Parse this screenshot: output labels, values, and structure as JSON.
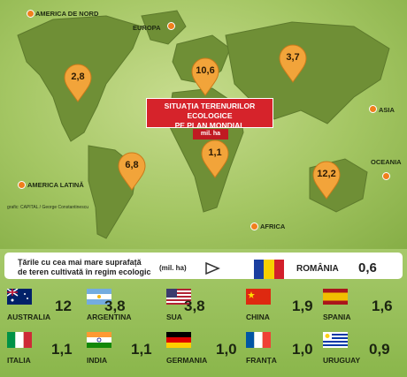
{
  "map": {
    "regions": {
      "north_america": "AMERICA DE NORD",
      "europe": "EUROPA",
      "asia": "ASIA",
      "oceania": "OCEANIA",
      "africa": "AFRICA",
      "latin_america": "AMERICA LATINĂ"
    },
    "values": {
      "north_america": "2,8",
      "europe": "10,6",
      "asia": "3,7",
      "africa": "1,1",
      "latin_america": "6,8",
      "oceania": "12,2"
    },
    "title_line1": "SITUAȚIA TERENURILOR ECOLOGICE",
    "title_line2": "PE PLAN MONDIAL",
    "unit": "mil. ha",
    "credit": "grafic: CAPITAL / George Constantinescu"
  },
  "panel": {
    "title_line1": "Țările cu cea mai mare suprafață",
    "title_line2": "de teren cultivată în regim ecologic",
    "unit": "(mil. ha)",
    "romania": {
      "name": "ROMÂNIA",
      "value": "0,6"
    },
    "countries": [
      {
        "name": "AUSTRALIA",
        "value": "12",
        "flag": "australia-flag"
      },
      {
        "name": "ARGENTINA",
        "value": "3,8",
        "flag": "argentina-flag"
      },
      {
        "name": "SUA",
        "value": "3,8",
        "flag": "usa-flag"
      },
      {
        "name": "CHINA",
        "value": "1,9",
        "flag": "china-flag"
      },
      {
        "name": "SPANIA",
        "value": "1,6",
        "flag": "spain-flag"
      },
      {
        "name": "ITALIA",
        "value": "1,1",
        "flag": "italy-flag"
      },
      {
        "name": "INDIA",
        "value": "1,1",
        "flag": "india-flag"
      },
      {
        "name": "GERMANIA",
        "value": "1,0",
        "flag": "germany-flag"
      },
      {
        "name": "FRANȚA",
        "value": "1,0",
        "flag": "france-flag"
      },
      {
        "name": "URUGUAY",
        "value": "0,9",
        "flag": "uruguay-flag"
      }
    ]
  },
  "colors": {
    "pin": "#f2a43a",
    "accent": "#d6232b",
    "land": "#8aa04a"
  }
}
